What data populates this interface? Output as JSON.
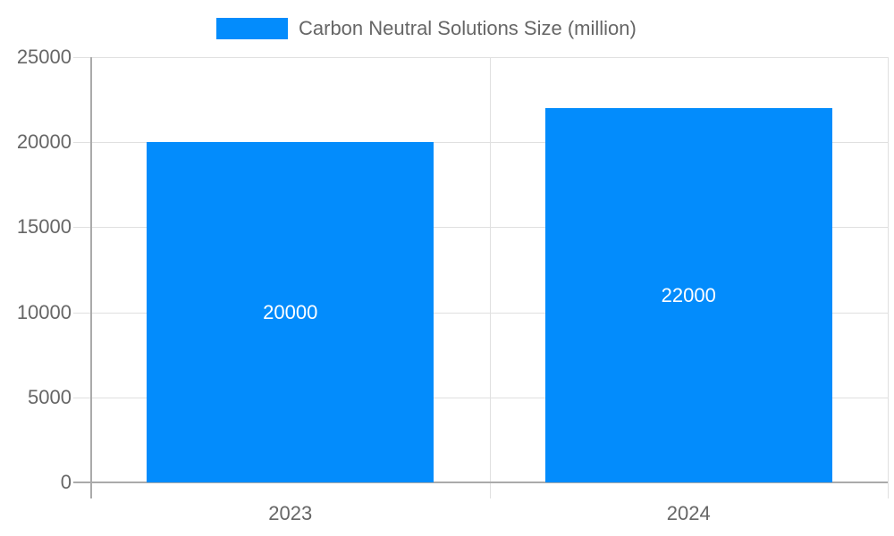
{
  "chart_data": {
    "type": "bar",
    "title": "",
    "xlabel": "",
    "ylabel": "",
    "categories": [
      "2023",
      "2024"
    ],
    "series": [
      {
        "name": "Carbon Neutral Solutions Size (million)",
        "values": [
          20000,
          22000
        ],
        "color": "#038cfc"
      }
    ],
    "data_labels": [
      "20000",
      "22000"
    ],
    "ylim": [
      0,
      25000
    ],
    "yticks": [
      "0",
      "5000",
      "10000",
      "15000",
      "20000",
      "25000"
    ],
    "grid": true,
    "legend_position": "top"
  },
  "legend": {
    "label": "Carbon Neutral Solutions Size (million)",
    "color": "#038cfc"
  }
}
